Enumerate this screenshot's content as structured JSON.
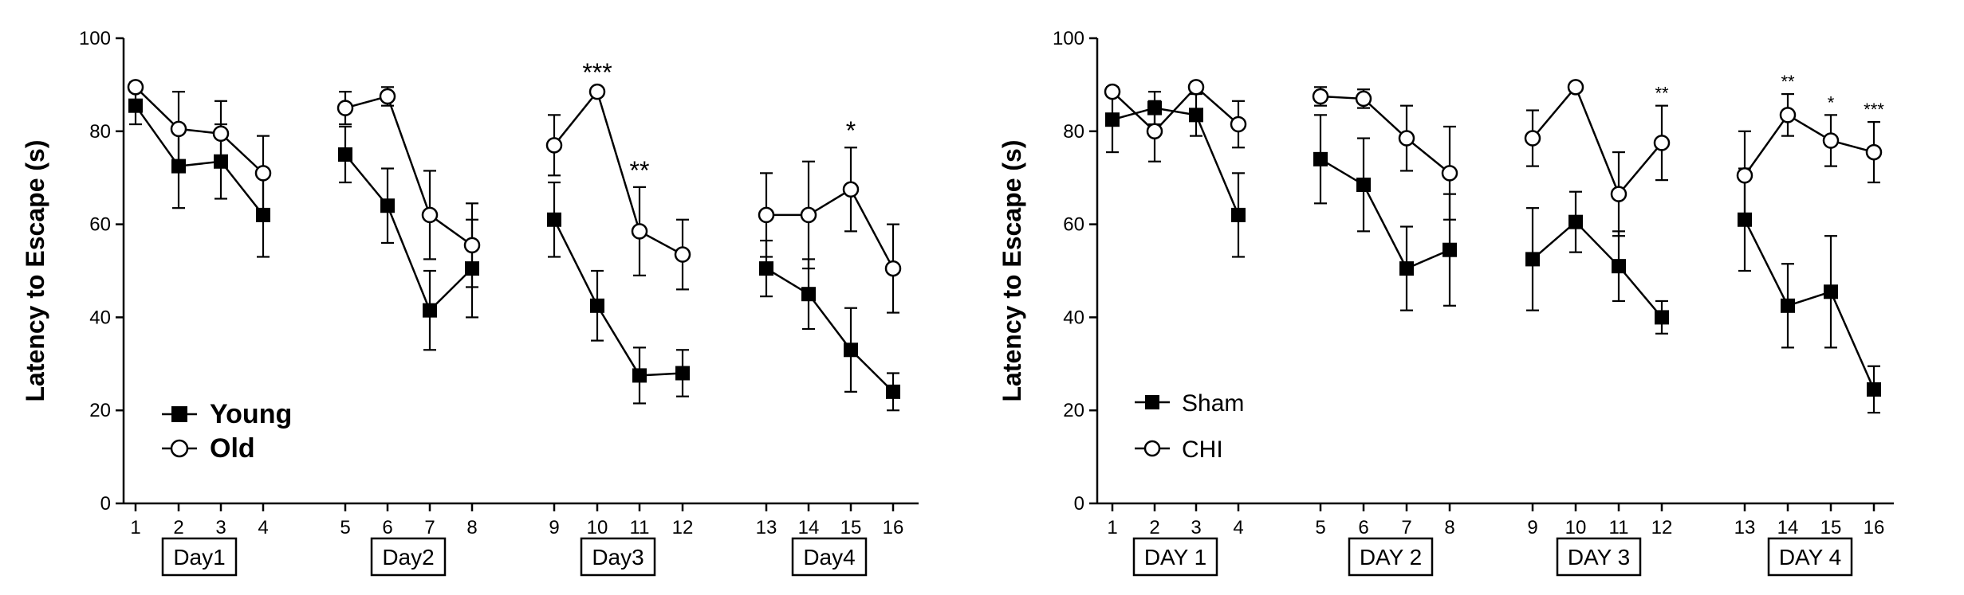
{
  "chart_data": [
    {
      "type": "line",
      "ylabel": "Latency to Escape (s)",
      "ylim": [
        0,
        100
      ],
      "yticks": [
        0,
        20,
        40,
        60,
        80,
        100
      ],
      "x": [
        1,
        2,
        3,
        4,
        5,
        6,
        7,
        8,
        9,
        10,
        11,
        12,
        13,
        14,
        15,
        16
      ],
      "xtick_labels": [
        "1",
        "2",
        "3",
        "4",
        "5",
        "6",
        "7",
        "8",
        "9",
        "10",
        "11",
        "12",
        "13",
        "14",
        "15",
        "16"
      ],
      "day_labels": [
        "Day1",
        "Day2",
        "Day3",
        "Day4"
      ],
      "legend_position": "bottom-left",
      "series": [
        {
          "name": "Young",
          "marker": "filled-square",
          "values": [
            85.5,
            72.5,
            73.5,
            62,
            75,
            64,
            41.5,
            50.5,
            61,
            42.5,
            27.5,
            28,
            50.5,
            45,
            33,
            24
          ],
          "errors": [
            4,
            9,
            8,
            9,
            6,
            8,
            8.5,
            10.5,
            8,
            7.5,
            6,
            5,
            6,
            7.5,
            9,
            4
          ]
        },
        {
          "name": "Old",
          "marker": "open-circle",
          "values": [
            89.5,
            80.5,
            79.5,
            71,
            85,
            87.5,
            62,
            55.5,
            77,
            88.5,
            58.5,
            53.5,
            62,
            62,
            67.5,
            50.5
          ],
          "errors": [
            1,
            8,
            7,
            8,
            3.5,
            2,
            9.5,
            9,
            6.5,
            0.5,
            9.5,
            7.5,
            9,
            11.5,
            9,
            9.5
          ]
        }
      ],
      "annotations": [
        {
          "x": 10,
          "text": "***"
        },
        {
          "x": 11,
          "text": "**"
        },
        {
          "x": 15,
          "text": "*"
        }
      ]
    },
    {
      "type": "line",
      "ylabel": "Latency to Escape (s)",
      "ylim": [
        0,
        100
      ],
      "yticks": [
        0,
        20,
        40,
        60,
        80,
        100
      ],
      "x": [
        1,
        2,
        3,
        4,
        5,
        6,
        7,
        8,
        9,
        10,
        11,
        12,
        13,
        14,
        15,
        16
      ],
      "xtick_labels": [
        "1",
        "2",
        "3",
        "4",
        "5",
        "6",
        "7",
        "8",
        "9",
        "10",
        "11",
        "12",
        "13",
        "14",
        "15",
        "16"
      ],
      "day_labels": [
        "DAY 1",
        "DAY 2",
        "DAY 3",
        "DAY 4"
      ],
      "legend_position": "bottom-left",
      "series": [
        {
          "name": "Sham",
          "marker": "filled-square",
          "values": [
            82.5,
            85,
            83.5,
            62,
            74,
            68.5,
            50.5,
            54.5,
            52.5,
            60.5,
            51,
            40,
            61,
            42.5,
            45.5,
            24.5
          ],
          "errors": [
            7,
            3.5,
            4.5,
            9,
            9.5,
            10,
            9,
            12,
            11,
            6.5,
            7.5,
            3.5,
            11,
            9,
            12,
            5
          ]
        },
        {
          "name": "CHI",
          "marker": "open-circle",
          "values": [
            88.5,
            80,
            89.5,
            81.5,
            87.5,
            87,
            78.5,
            71,
            78.5,
            89.5,
            66.5,
            77.5,
            70.5,
            83.5,
            78,
            75.5
          ],
          "errors": [
            1,
            6.5,
            1,
            5,
            2,
            2,
            7,
            10,
            6,
            0.5,
            9,
            8,
            9.5,
            4.5,
            5.5,
            6.5
          ]
        }
      ],
      "annotations": [
        {
          "x": 12,
          "text": "**"
        },
        {
          "x": 14,
          "text": "**"
        },
        {
          "x": 15,
          "text": "*"
        },
        {
          "x": 16,
          "text": "***"
        }
      ]
    }
  ]
}
